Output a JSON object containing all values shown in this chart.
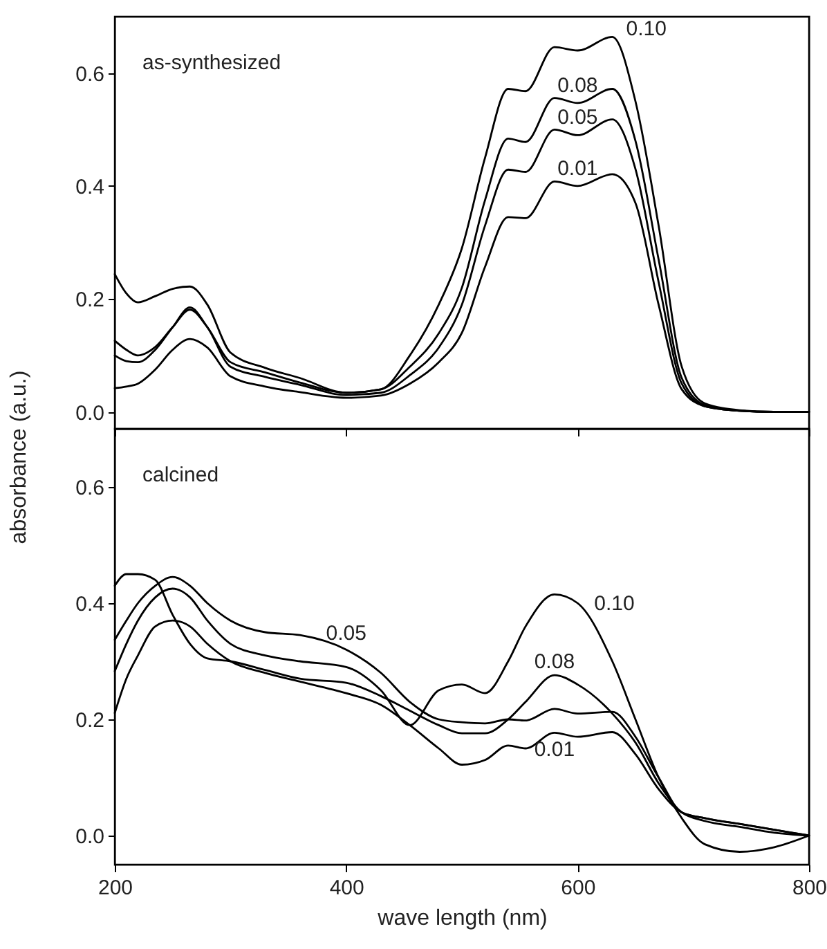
{
  "chart_data": [
    {
      "type": "line",
      "ylabel": "absorbance (a.u.)",
      "annotations": [
        "as-synthesized"
      ],
      "tick_labels": "y",
      "x": [
        200,
        210,
        220,
        235,
        250,
        265,
        280,
        300,
        330,
        360,
        400,
        430,
        455,
        480,
        500,
        520,
        540,
        555,
        580,
        600,
        630,
        650,
        670,
        690,
        710,
        740,
        770,
        800
      ],
      "xlim": [
        200,
        800
      ],
      "xticks": [
        200,
        400,
        600,
        800
      ],
      "ylim": [
        -0.03,
        0.7
      ],
      "yticks": [
        {
          "value": 0,
          "label": "0.0"
        },
        0.2,
        0.4,
        0.6
      ],
      "series": [
        {
          "name": "0.10",
          "color": "#000000",
          "values": [
            0.244,
            0.21,
            0.194,
            0.205,
            0.218,
            0.222,
            0.19,
            0.105,
            0.078,
            0.06,
            0.034,
            0.04,
            0.1,
            0.19,
            0.29,
            0.45,
            0.572,
            0.568,
            0.646,
            0.64,
            0.664,
            0.55,
            0.33,
            0.08,
            0.015,
            0.003,
            0,
            0
          ]
        },
        {
          "name": "0.08",
          "color": "#000000",
          "values": [
            0.126,
            0.11,
            0.1,
            0.115,
            0.15,
            0.181,
            0.15,
            0.088,
            0.07,
            0.052,
            0.034,
            0.04,
            0.08,
            0.139,
            0.22,
            0.375,
            0.484,
            0.478,
            0.556,
            0.547,
            0.572,
            0.48,
            0.27,
            0.06,
            0.012,
            0.002,
            0,
            0
          ]
        },
        {
          "name": "0.05",
          "color": "#000000",
          "values": [
            0.1,
            0.09,
            0.088,
            0.11,
            0.15,
            0.185,
            0.15,
            0.08,
            0.062,
            0.048,
            0.03,
            0.034,
            0.065,
            0.114,
            0.19,
            0.33,
            0.429,
            0.425,
            0.5,
            0.49,
            0.518,
            0.43,
            0.23,
            0.05,
            0.01,
            0.002,
            0,
            0
          ]
        },
        {
          "name": "0.01",
          "color": "#000000",
          "values": [
            0.042,
            0.045,
            0.05,
            0.075,
            0.11,
            0.129,
            0.114,
            0.063,
            0.045,
            0.035,
            0.025,
            0.029,
            0.05,
            0.088,
            0.14,
            0.257,
            0.345,
            0.343,
            0.408,
            0.4,
            0.421,
            0.37,
            0.19,
            0.04,
            0.01,
            0.002,
            0,
            0
          ]
        }
      ]
    },
    {
      "type": "line",
      "xlabel": "wave length (nm)",
      "annotations": [
        "calcined"
      ],
      "x": [
        200,
        210,
        220,
        235,
        250,
        265,
        280,
        300,
        330,
        360,
        400,
        430,
        455,
        480,
        500,
        520,
        540,
        555,
        580,
        600,
        630,
        650,
        670,
        690,
        710,
        740,
        770,
        800
      ],
      "xlim": [
        200,
        800
      ],
      "xticks": [
        200,
        400,
        600,
        800
      ],
      "ylim": [
        -0.05,
        0.7
      ],
      "yticks": [
        {
          "value": 0,
          "label": "0.0"
        },
        0.2,
        0.4,
        0.6
      ],
      "series": [
        {
          "name": "0.10",
          "color": "#000000",
          "values": [
            0.283,
            0.33,
            0.37,
            0.41,
            0.425,
            0.41,
            0.37,
            0.33,
            0.31,
            0.3,
            0.29,
            0.25,
            0.19,
            0.25,
            0.26,
            0.245,
            0.3,
            0.36,
            0.415,
            0.4,
            0.3,
            0.2,
            0.1,
            0.03,
            -0.015,
            -0.028,
            -0.02,
            0
          ]
        },
        {
          "name": "0.08",
          "color": "#000000",
          "values": [
            0.43,
            0.45,
            0.45,
            0.44,
            0.38,
            0.33,
            0.305,
            0.3,
            0.285,
            0.27,
            0.263,
            0.24,
            0.215,
            0.19,
            0.176,
            0.176,
            0.2,
            0.23,
            0.276,
            0.26,
            0.21,
            0.16,
            0.09,
            0.04,
            0.025,
            0.015,
            0.005,
            0
          ]
        },
        {
          "name": "0.05",
          "color": "#000000",
          "values": [
            0.337,
            0.37,
            0.4,
            0.43,
            0.445,
            0.43,
            0.4,
            0.37,
            0.35,
            0.345,
            0.32,
            0.28,
            0.23,
            0.2,
            0.195,
            0.193,
            0.2,
            0.198,
            0.218,
            0.21,
            0.213,
            0.17,
            0.1,
            0.04,
            0.03,
            0.02,
            0.01,
            0
          ]
        },
        {
          "name": "0.01",
          "color": "#000000",
          "values": [
            0.211,
            0.27,
            0.31,
            0.36,
            0.37,
            0.36,
            0.33,
            0.3,
            0.28,
            0.265,
            0.245,
            0.225,
            0.19,
            0.15,
            0.122,
            0.13,
            0.155,
            0.15,
            0.177,
            0.17,
            0.178,
            0.14,
            0.08,
            0.04,
            0.03,
            0.02,
            0.01,
            0
          ]
        }
      ]
    }
  ]
}
